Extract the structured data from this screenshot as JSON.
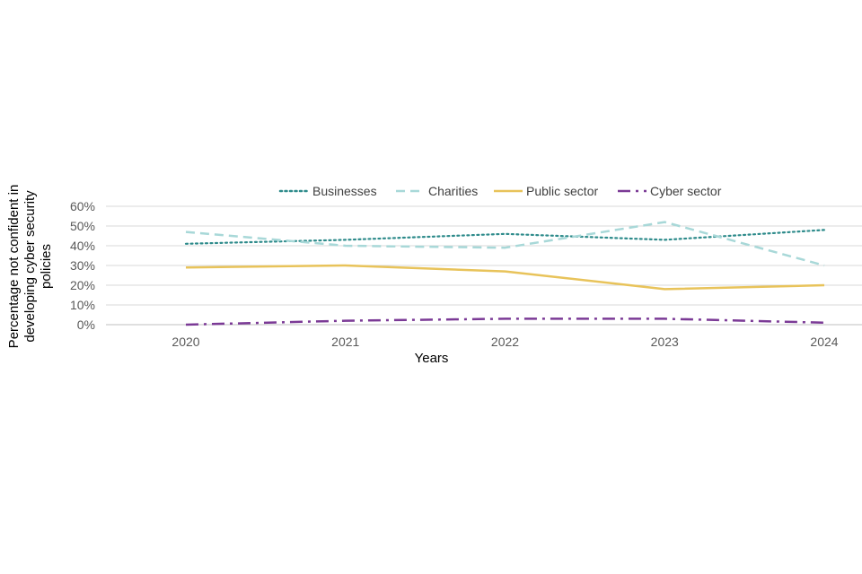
{
  "chart_data": {
    "type": "line",
    "title": "",
    "xlabel": "Years",
    "ylabel_lines": [
      "Percentage not confident in",
      "developing cyber security",
      "policies"
    ],
    "categories": [
      "2020",
      "2021",
      "2022",
      "2023",
      "2024"
    ],
    "ylim": [
      0,
      60
    ],
    "yticks": [
      0,
      10,
      20,
      30,
      40,
      50,
      60
    ],
    "ytick_labels": [
      "0%",
      "10%",
      "20%",
      "30%",
      "40%",
      "50%",
      "60%"
    ],
    "grid": true,
    "legend_position": "top",
    "series": [
      {
        "name": "Businesses",
        "values": [
          41,
          43,
          46,
          43,
          48
        ],
        "color": "#2E8B8B",
        "style": "dotted"
      },
      {
        "name": "Charities",
        "values": [
          47,
          40,
          39,
          52,
          30
        ],
        "color": "#A8D8D8",
        "style": "dashed"
      },
      {
        "name": "Public sector",
        "values": [
          29,
          30,
          27,
          18,
          20
        ],
        "color": "#E8C35A",
        "style": "solid"
      },
      {
        "name": "Cyber sector",
        "values": [
          0,
          2,
          3,
          3,
          1
        ],
        "color": "#7B3A96",
        "style": "dashdot"
      }
    ]
  }
}
